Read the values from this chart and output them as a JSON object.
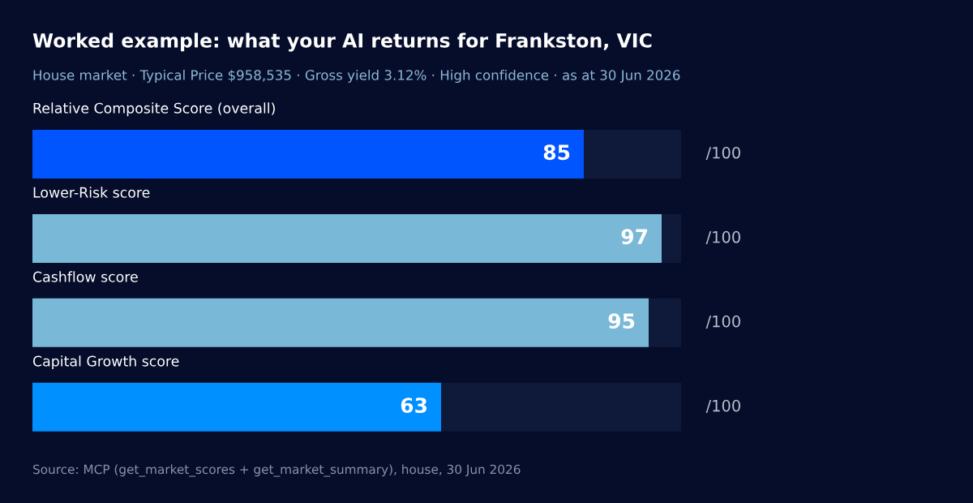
{
  "chart_data": {
    "type": "bar",
    "orientation": "horizontal",
    "stacked": true,
    "title": "Worked example: what your AI returns for Frankston, VIC",
    "subtitle": "House market · Typical Price $958,535 · Gross yield 3.12% · High confidence · as at 30 Jun 2026",
    "categories": [
      "Relative Composite Score (overall)",
      "Lower-Risk score",
      "Cashflow score",
      "Capital Growth score"
    ],
    "series": [
      {
        "colors": [
          "#0055ff",
          "#7ab8d8",
          "#7ab8d8",
          "#0090ff"
        ],
        "values": [
          85,
          97,
          95,
          63
        ],
        "value_labels": [
          "85",
          "97",
          "95",
          "63"
        ]
      },
      {
        "color": "#0f1a3a",
        "values": [
          15,
          3,
          5,
          37
        ]
      }
    ],
    "xlim": [
      0,
      100
    ],
    "tick_labels": false,
    "annotations": [
      "/100",
      "/100",
      "/100",
      "/100",
      "Source: MCP (get_market_scores + get_market_summary), house, 30 Jun 2026"
    ]
  }
}
